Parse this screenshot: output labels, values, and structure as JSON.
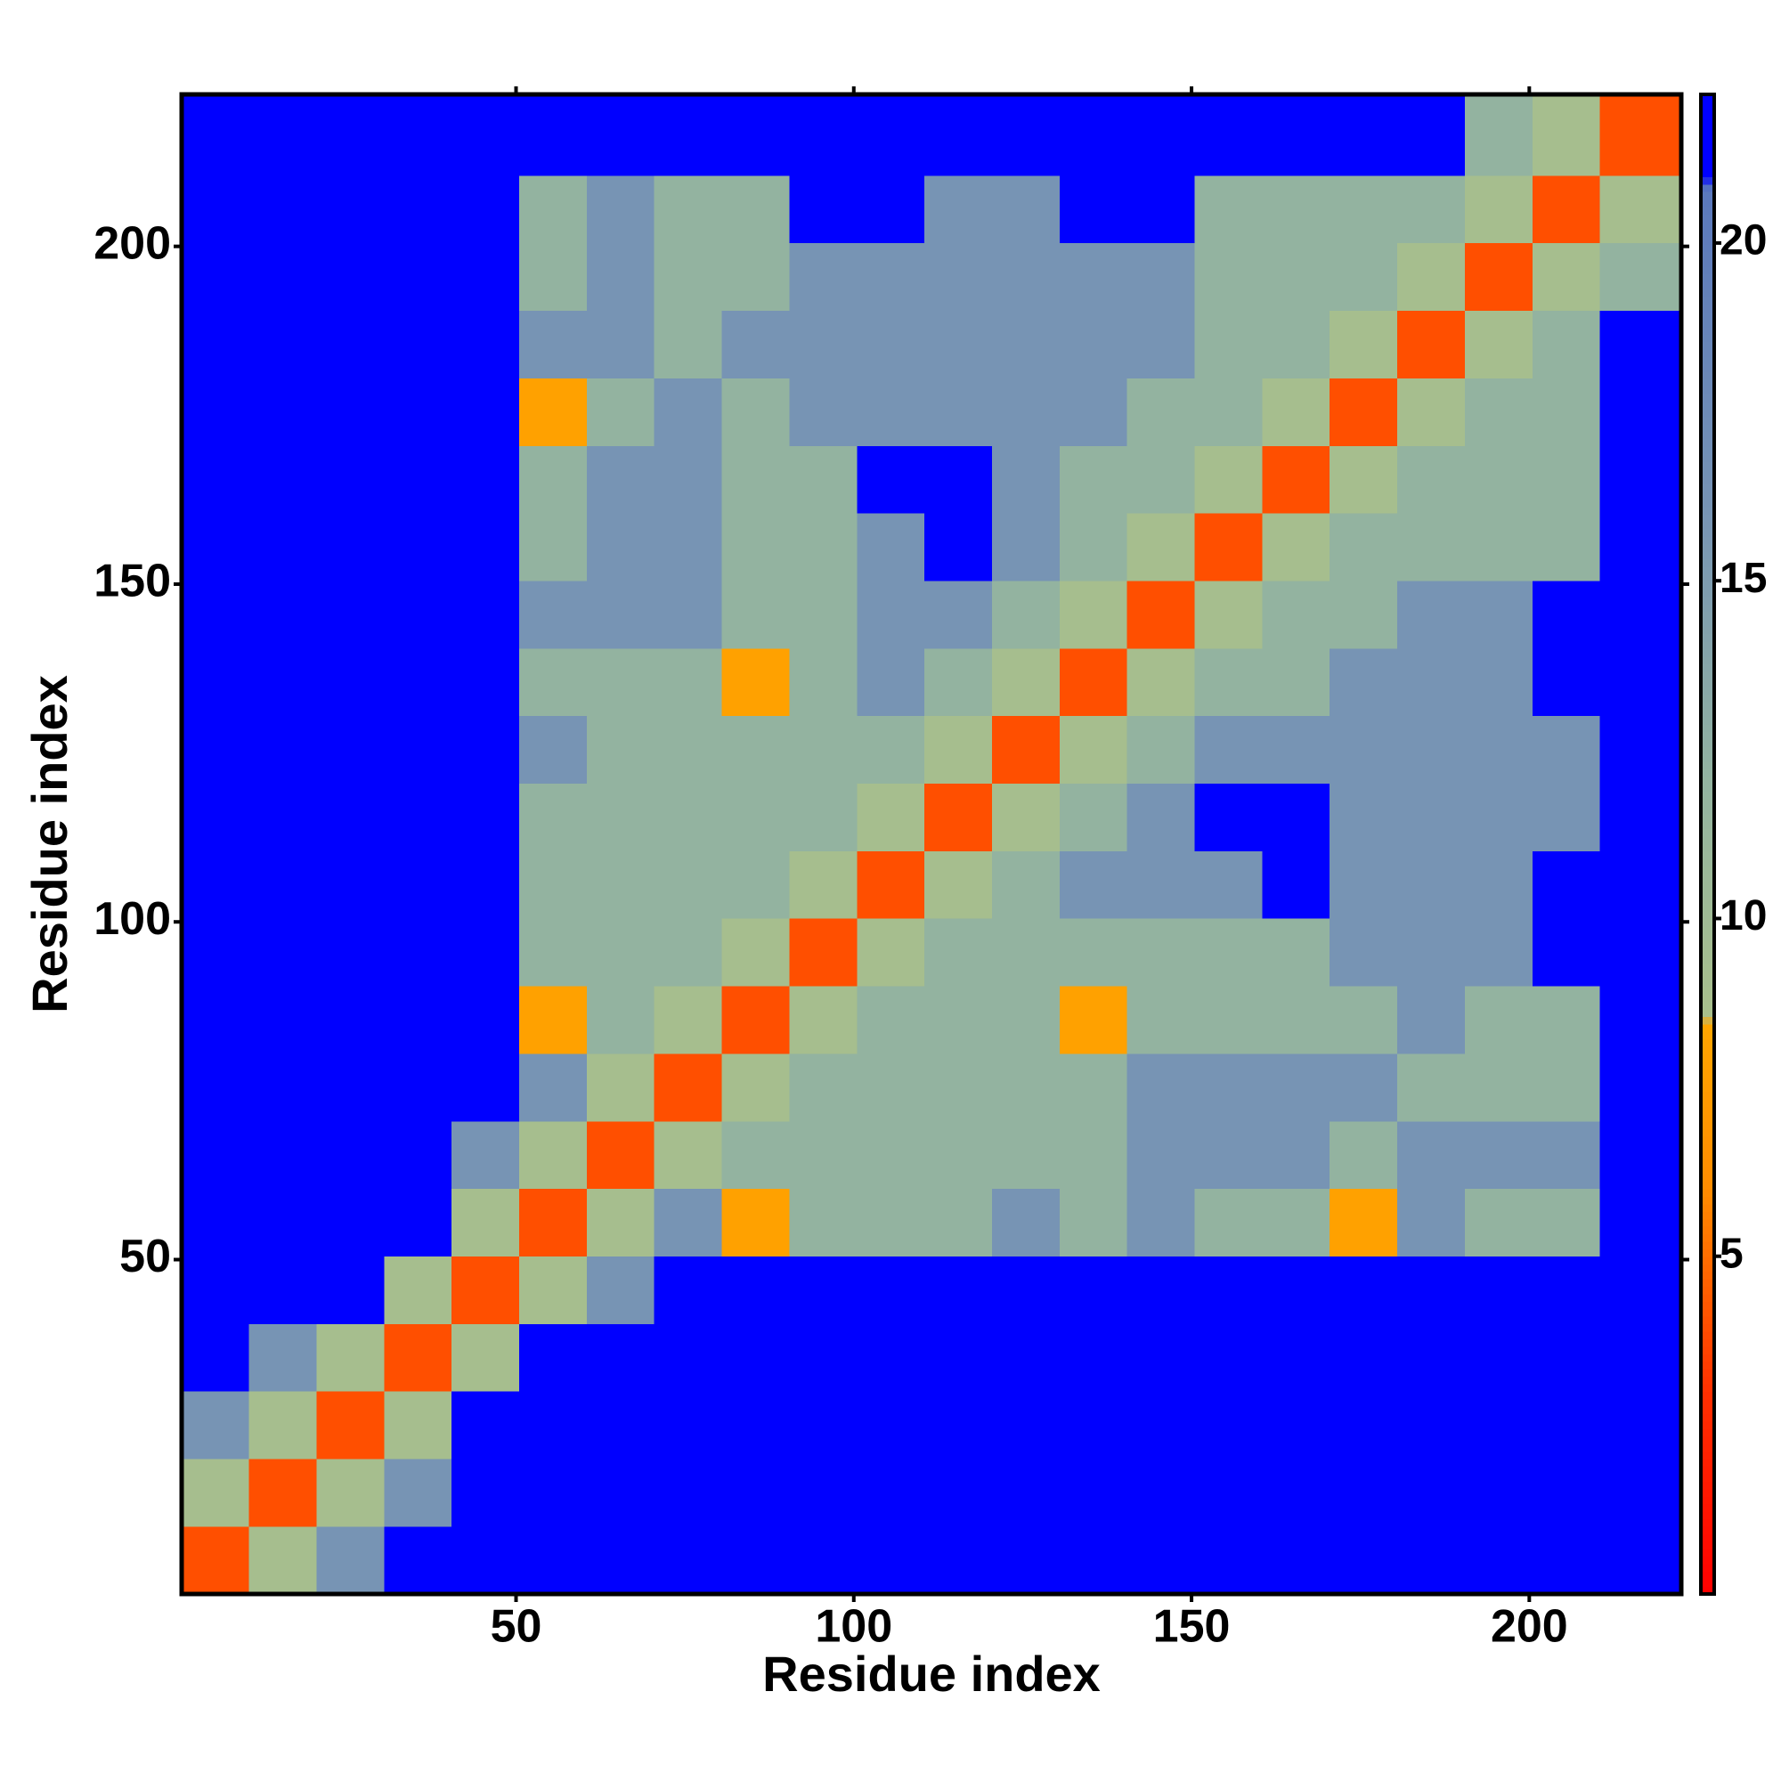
{
  "chart_data": {
    "type": "heatmap",
    "xlabel": "Residue index",
    "ylabel": "Residue index",
    "xlim": [
      0.5,
      222.5
    ],
    "ylim": [
      0.5,
      222.5
    ],
    "xticks": [
      50,
      100,
      150,
      200
    ],
    "yticks": [
      50,
      100,
      150,
      200
    ],
    "bins": [
      0.5,
      10.5,
      20.5,
      30.5,
      40.5,
      50.5,
      60.5,
      70.5,
      80.5,
      90.5,
      100.5,
      110.5,
      120.5,
      130.5,
      140.5,
      150.5,
      160.5,
      170.5,
      180.5,
      190.5,
      200.5,
      210.5,
      222.5
    ],
    "clim": [
      0,
      22.2
    ],
    "cticks": [
      5,
      10,
      15,
      20
    ],
    "colorscale": [
      [
        0,
        "#ff0000"
      ],
      [
        3,
        "#ff3000"
      ],
      [
        6,
        "#ff8c00"
      ],
      [
        8.4,
        "#ffa500"
      ],
      [
        8.6,
        "#a8bf8c"
      ],
      [
        12,
        "#93b3a0"
      ],
      [
        16,
        "#7794b4"
      ],
      [
        20.8,
        "#5a78bc"
      ],
      [
        21,
        "#0000ff"
      ],
      [
        22.2,
        "#0000ff"
      ]
    ],
    "z": [
      [
        4,
        9,
        16,
        21,
        21,
        21,
        21,
        21,
        21,
        21,
        21,
        21,
        21,
        21,
        21,
        21,
        21,
        21,
        21,
        21,
        21,
        21
      ],
      [
        9,
        4,
        9,
        16,
        21,
        21,
        21,
        21,
        21,
        21,
        21,
        21,
        21,
        21,
        21,
        21,
        21,
        21,
        21,
        21,
        21,
        21
      ],
      [
        16,
        9,
        4,
        9,
        21,
        21,
        21,
        21,
        21,
        21,
        21,
        21,
        21,
        21,
        21,
        21,
        21,
        21,
        21,
        21,
        21,
        21
      ],
      [
        21,
        16,
        9,
        4,
        9,
        21,
        21,
        21,
        21,
        21,
        21,
        21,
        21,
        21,
        21,
        21,
        21,
        21,
        21,
        21,
        21,
        21
      ],
      [
        21,
        21,
        21,
        9,
        4,
        9,
        16,
        21,
        21,
        21,
        21,
        21,
        21,
        21,
        21,
        21,
        21,
        21,
        21,
        21,
        21,
        21
      ],
      [
        21,
        21,
        21,
        21,
        9,
        4,
        9,
        16,
        8,
        12,
        12,
        12,
        16,
        12,
        16,
        12,
        12,
        8,
        16,
        12,
        12,
        21
      ],
      [
        21,
        21,
        21,
        21,
        16,
        9,
        4,
        9,
        12,
        12,
        12,
        12,
        12,
        12,
        16,
        16,
        16,
        12,
        16,
        16,
        16,
        21
      ],
      [
        21,
        21,
        21,
        21,
        21,
        16,
        9,
        4,
        9,
        12,
        12,
        12,
        12,
        12,
        16,
        16,
        16,
        16,
        12,
        12,
        12,
        21
      ],
      [
        21,
        21,
        21,
        21,
        21,
        8,
        12,
        9,
        4,
        9,
        12,
        12,
        12,
        8,
        12,
        12,
        12,
        12,
        16,
        12,
        12,
        21
      ],
      [
        21,
        21,
        21,
        21,
        21,
        12,
        12,
        12,
        9,
        4,
        9,
        12,
        12,
        12,
        12,
        12,
        12,
        16,
        16,
        16,
        21,
        21
      ],
      [
        21,
        21,
        21,
        21,
        21,
        12,
        12,
        12,
        12,
        9,
        4,
        9,
        12,
        16,
        16,
        16,
        21,
        16,
        16,
        16,
        21,
        21
      ],
      [
        21,
        21,
        21,
        21,
        21,
        12,
        12,
        12,
        12,
        12,
        9,
        4,
        9,
        12,
        16,
        21,
        21,
        16,
        16,
        16,
        16,
        21
      ],
      [
        21,
        21,
        21,
        21,
        21,
        16,
        12,
        12,
        12,
        12,
        12,
        9,
        4,
        9,
        12,
        16,
        16,
        16,
        16,
        16,
        16,
        21
      ],
      [
        21,
        21,
        21,
        21,
        21,
        12,
        12,
        12,
        8,
        12,
        16,
        12,
        9,
        4,
        9,
        12,
        12,
        16,
        16,
        16,
        21,
        21
      ],
      [
        21,
        21,
        21,
        21,
        21,
        16,
        16,
        16,
        12,
        12,
        16,
        16,
        12,
        9,
        4,
        9,
        12,
        12,
        16,
        16,
        21,
        21
      ],
      [
        21,
        21,
        21,
        21,
        21,
        12,
        16,
        16,
        12,
        12,
        16,
        21,
        16,
        12,
        9,
        4,
        9,
        12,
        12,
        12,
        12,
        21
      ],
      [
        21,
        21,
        21,
        21,
        21,
        12,
        16,
        16,
        12,
        12,
        21,
        21,
        16,
        12,
        12,
        9,
        4,
        9,
        12,
        12,
        12,
        21
      ],
      [
        21,
        21,
        21,
        21,
        21,
        8,
        12,
        16,
        12,
        16,
        16,
        16,
        16,
        16,
        12,
        12,
        9,
        4,
        9,
        12,
        12,
        21
      ],
      [
        21,
        21,
        21,
        21,
        21,
        16,
        16,
        12,
        16,
        16,
        16,
        16,
        16,
        16,
        16,
        12,
        12,
        9,
        4,
        9,
        12,
        21
      ],
      [
        21,
        21,
        21,
        21,
        21,
        12,
        16,
        12,
        12,
        16,
        16,
        16,
        16,
        16,
        16,
        12,
        12,
        12,
        9,
        4,
        9,
        12
      ],
      [
        21,
        21,
        21,
        21,
        21,
        12,
        16,
        12,
        12,
        21,
        21,
        16,
        16,
        21,
        21,
        12,
        12,
        12,
        12,
        9,
        4,
        9
      ],
      [
        21,
        21,
        21,
        21,
        21,
        21,
        21,
        21,
        21,
        21,
        21,
        21,
        21,
        21,
        21,
        21,
        21,
        21,
        21,
        12,
        9,
        4
      ]
    ]
  }
}
